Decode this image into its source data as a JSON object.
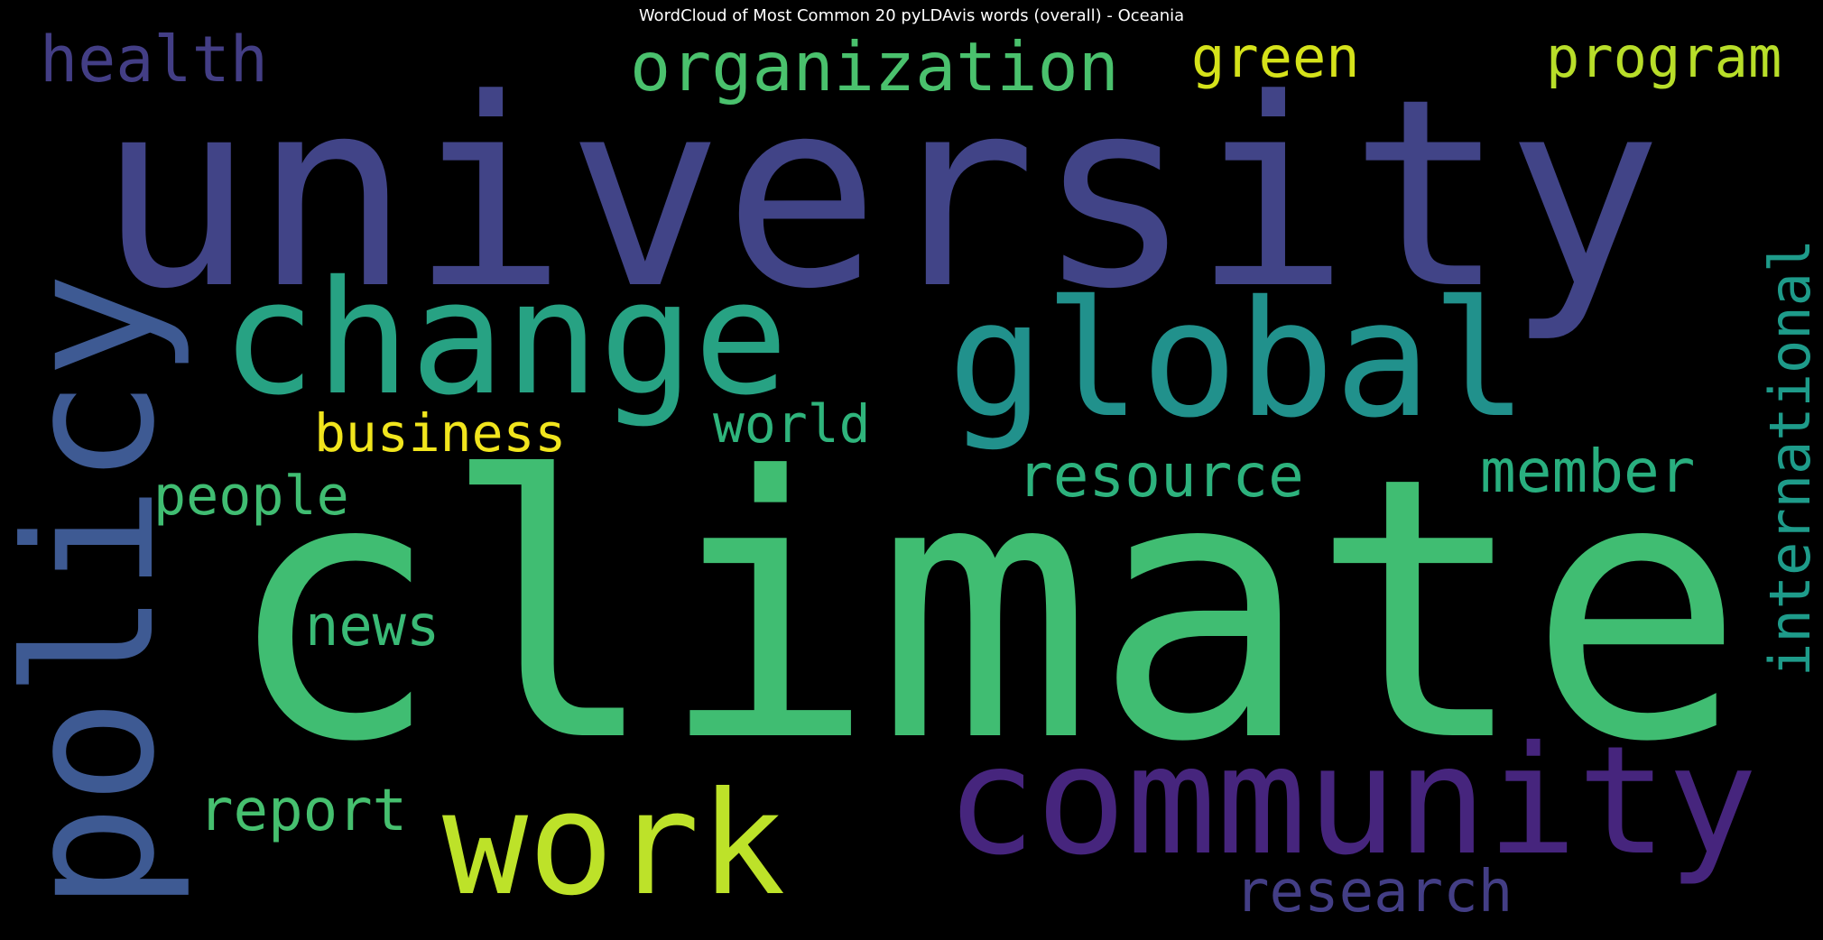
{
  "chart_data": {
    "type": "wordcloud",
    "title": "WordCloud of Most Common 20 pyLDAvis words (overall) - Oceania",
    "background": "#000000",
    "colormap": "viridis",
    "words": [
      {
        "text": "climate",
        "weight": 1.0,
        "color": "#40bd72",
        "orientation": "horizontal"
      },
      {
        "text": "university",
        "weight": 0.92,
        "color": "#414487",
        "orientation": "horizontal"
      },
      {
        "text": "policy",
        "weight": 0.58,
        "color": "#3e5a93",
        "orientation": "vertical"
      },
      {
        "text": "global",
        "weight": 0.55,
        "color": "#21918c",
        "orientation": "horizontal"
      },
      {
        "text": "change",
        "weight": 0.52,
        "color": "#27a283",
        "orientation": "horizontal"
      },
      {
        "text": "community",
        "weight": 0.5,
        "color": "#46257d",
        "orientation": "horizontal"
      },
      {
        "text": "work",
        "weight": 0.48,
        "color": "#bde229",
        "orientation": "horizontal"
      },
      {
        "text": "organization",
        "weight": 0.22,
        "color": "#4ac16d",
        "orientation": "horizontal"
      },
      {
        "text": "health",
        "weight": 0.2,
        "color": "#433e85",
        "orientation": "horizontal"
      },
      {
        "text": "program",
        "weight": 0.19,
        "color": "#b8de29",
        "orientation": "horizontal"
      },
      {
        "text": "international",
        "weight": 0.19,
        "color": "#1e9b8a",
        "orientation": "vertical"
      },
      {
        "text": "resource",
        "weight": 0.18,
        "color": "#2db27d",
        "orientation": "horizontal"
      },
      {
        "text": "member",
        "weight": 0.18,
        "color": "#29af7f",
        "orientation": "horizontal"
      },
      {
        "text": "report",
        "weight": 0.18,
        "color": "#46c06f",
        "orientation": "horizontal"
      },
      {
        "text": "research",
        "weight": 0.17,
        "color": "#433e85",
        "orientation": "horizontal"
      },
      {
        "text": "green",
        "weight": 0.16,
        "color": "#d5e21a",
        "orientation": "horizontal"
      },
      {
        "text": "people",
        "weight": 0.16,
        "color": "#40bd72",
        "orientation": "horizontal"
      },
      {
        "text": "news",
        "weight": 0.16,
        "color": "#3aba76",
        "orientation": "horizontal"
      },
      {
        "text": "business",
        "weight": 0.15,
        "color": "#f1e51d",
        "orientation": "horizontal"
      },
      {
        "text": "world",
        "weight": 0.15,
        "color": "#2fb47c",
        "orientation": "horizontal"
      }
    ]
  }
}
